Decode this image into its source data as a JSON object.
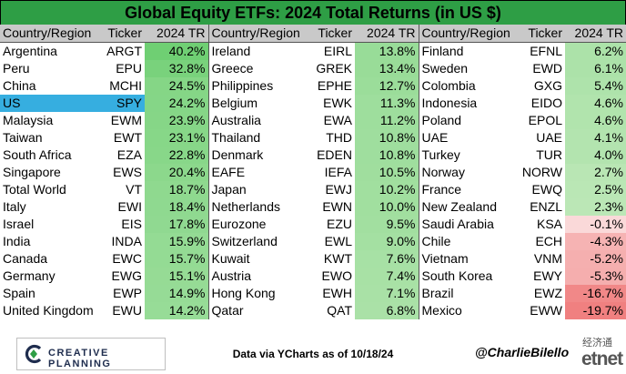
{
  "title": "Global Equity ETFs: 2024 Total Returns (in US $)",
  "headers": {
    "country": "Country/Region",
    "ticker": "Ticker",
    "ret": "2024 TR"
  },
  "colors": {
    "title_bg": "#2e9e45",
    "header_bg": "#c9c9c9",
    "highlight": "#36aee0",
    "positive_light": "#d8f0d0",
    "positive_strong": "#6fcf73",
    "negative_light": "#fbe0e0",
    "negative_strong": "#f08080"
  },
  "highlight_row": {
    "column": 0,
    "row": 3
  },
  "chart_data": {
    "type": "table",
    "title": "Global Equity ETFs: 2024 Total Returns (in US $)",
    "columns": [
      "Country/Region",
      "Ticker",
      "2024 TR"
    ],
    "groups": [
      [
        [
          "Argentina",
          "ARGT",
          "40.2%"
        ],
        [
          "Peru",
          "EPU",
          "32.8%"
        ],
        [
          "China",
          "MCHI",
          "24.5%"
        ],
        [
          "US",
          "SPY",
          "24.2%"
        ],
        [
          "Malaysia",
          "EWM",
          "23.9%"
        ],
        [
          "Taiwan",
          "EWT",
          "23.1%"
        ],
        [
          "South Africa",
          "EZA",
          "22.8%"
        ],
        [
          "Singapore",
          "EWS",
          "20.4%"
        ],
        [
          "Total World",
          "VT",
          "18.7%"
        ],
        [
          "Italy",
          "EWI",
          "18.4%"
        ],
        [
          "Israel",
          "EIS",
          "17.8%"
        ],
        [
          "India",
          "INDA",
          "15.9%"
        ],
        [
          "Canada",
          "EWC",
          "15.7%"
        ],
        [
          "Germany",
          "EWG",
          "15.1%"
        ],
        [
          "Spain",
          "EWP",
          "14.9%"
        ],
        [
          "United Kingdom",
          "EWU",
          "14.2%"
        ]
      ],
      [
        [
          "Ireland",
          "EIRL",
          "13.8%"
        ],
        [
          "Greece",
          "GREK",
          "13.4%"
        ],
        [
          "Philippines",
          "EPHE",
          "12.7%"
        ],
        [
          "Belgium",
          "EWK",
          "11.3%"
        ],
        [
          "Australia",
          "EWA",
          "11.2%"
        ],
        [
          "Thailand",
          "THD",
          "10.8%"
        ],
        [
          "Denmark",
          "EDEN",
          "10.8%"
        ],
        [
          "EAFE",
          "IEFA",
          "10.5%"
        ],
        [
          "Japan",
          "EWJ",
          "10.2%"
        ],
        [
          "Netherlands",
          "EWN",
          "10.0%"
        ],
        [
          "Eurozone",
          "EZU",
          "9.5%"
        ],
        [
          "Switzerland",
          "EWL",
          "9.0%"
        ],
        [
          "Kuwait",
          "KWT",
          "7.6%"
        ],
        [
          "Austria",
          "EWO",
          "7.4%"
        ],
        [
          "Hong Kong",
          "EWH",
          "7.1%"
        ],
        [
          "Qatar",
          "QAT",
          "6.8%"
        ]
      ],
      [
        [
          "Finland",
          "EFNL",
          "6.2%"
        ],
        [
          "Sweden",
          "EWD",
          "6.1%"
        ],
        [
          "Colombia",
          "GXG",
          "5.4%"
        ],
        [
          "Indonesia",
          "EIDO",
          "4.6%"
        ],
        [
          "Poland",
          "EPOL",
          "4.6%"
        ],
        [
          "UAE",
          "UAE",
          "4.1%"
        ],
        [
          "Turkey",
          "TUR",
          "4.0%"
        ],
        [
          "Norway",
          "NORW",
          "2.7%"
        ],
        [
          "France",
          "EWQ",
          "2.5%"
        ],
        [
          "New Zealand",
          "ENZL",
          "2.3%"
        ],
        [
          "Saudi Arabia",
          "KSA",
          "-0.1%"
        ],
        [
          "Chile",
          "ECH",
          "-4.3%"
        ],
        [
          "Vietnam",
          "VNM",
          "-5.2%"
        ],
        [
          "South Korea",
          "EWY",
          "-5.3%"
        ],
        [
          "Brazil",
          "EWZ",
          "-16.7%"
        ],
        [
          "Mexico",
          "EWW",
          "-19.7%"
        ]
      ]
    ]
  },
  "footer": {
    "logo_text": "CREATIVE PLANNING",
    "source": "Data via YCharts as of 10/18/24",
    "handle": "@CharlieBilello",
    "watermark_cn": "经济通",
    "watermark_en": "etnet"
  }
}
